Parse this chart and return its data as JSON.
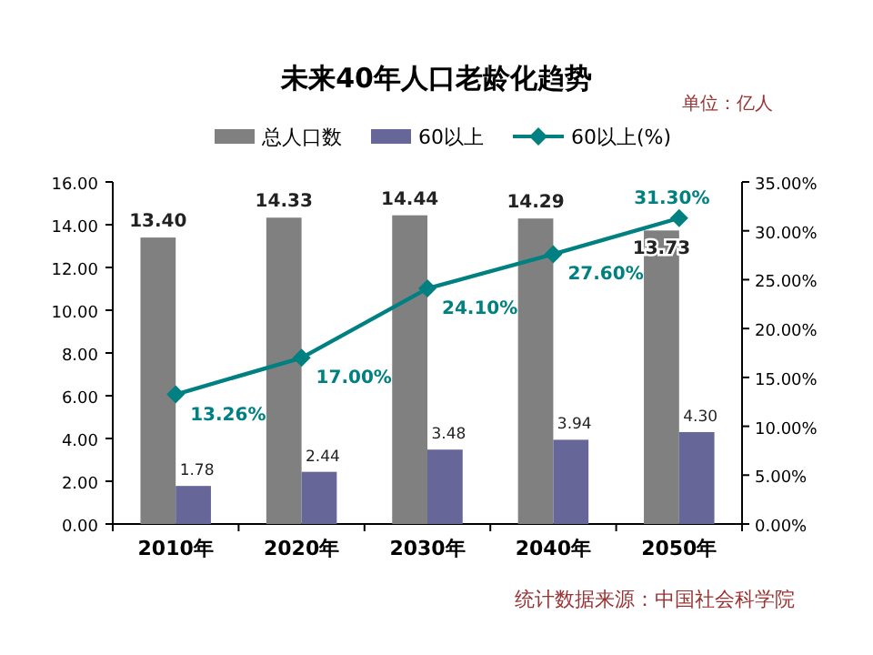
{
  "chart_data": {
    "type": "bar",
    "title": "未来40年人口老龄化趋势",
    "categories": [
      "2010年",
      "2020年",
      "2030年",
      "2040年",
      "2050年"
    ],
    "series": [
      {
        "name": "总人口数",
        "color": "#808080",
        "values": [
          13.4,
          14.33,
          14.44,
          14.29,
          13.73
        ],
        "value_labels": [
          "13.40",
          "14.33",
          "14.44",
          "14.29",
          "13.73"
        ]
      },
      {
        "name": "60以上",
        "color": "#666699",
        "values": [
          1.78,
          2.44,
          3.48,
          3.94,
          4.3
        ],
        "value_labels": [
          "1.78",
          "2.44",
          "3.48",
          "3.94",
          "4.30"
        ]
      },
      {
        "name": "60以上(%)",
        "type": "line",
        "axis": "y2",
        "color": "#008080",
        "marker": "diamond",
        "values": [
          13.26,
          17.0,
          24.1,
          27.6,
          31.3
        ],
        "value_labels": [
          "13.26%",
          "17.00%",
          "24.10%",
          "27.60%",
          "31.30%"
        ]
      }
    ],
    "ylim": [
      0,
      16
    ],
    "yticks": [
      {
        "value": 0,
        "label": "0.00"
      },
      {
        "value": 2,
        "label": "2.00"
      },
      {
        "value": 4,
        "label": "4.00"
      },
      {
        "value": 6,
        "label": "6.00"
      },
      {
        "value": 8,
        "label": "8.00"
      },
      {
        "value": 10,
        "label": "10.00"
      },
      {
        "value": 12,
        "label": "12.00"
      },
      {
        "value": 14,
        "label": "14.00"
      },
      {
        "value": 16,
        "label": "16.00"
      }
    ],
    "y2lim": [
      0,
      35
    ],
    "y2ticks": [
      {
        "value": 0,
        "label": "0.00%"
      },
      {
        "value": 5,
        "label": "5.00%"
      },
      {
        "value": 10,
        "label": "10.00%"
      },
      {
        "value": 15,
        "label": "15.00%"
      },
      {
        "value": 20,
        "label": "20.00%"
      },
      {
        "value": 25,
        "label": "25.00%"
      },
      {
        "value": 30,
        "label": "30.00%"
      },
      {
        "value": 35,
        "label": "35.00%"
      }
    ],
    "legend": "top",
    "grid": false,
    "annotations": [
      "单位：亿人",
      "统计数据来源：中国社会科学院"
    ]
  }
}
